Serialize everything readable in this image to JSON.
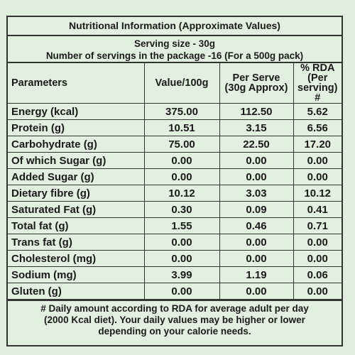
{
  "title": "Nutritional Information (Approximate Values)",
  "serving": {
    "line1": "Serving size - 30g",
    "line2": "Number of servings in the package -16 (For a 500g pack)"
  },
  "headers": {
    "parameters": "Parameters",
    "value": "Value/100g",
    "per_serve": "Per Serve (30g Approx)",
    "rda": "% RDA (Per serving) #"
  },
  "rows": [
    {
      "name": "Energy (kcal)",
      "value": "375.00",
      "per_serve": "112.50",
      "rda": "5.62"
    },
    {
      "name": "Protein (g)",
      "value": "10.51",
      "per_serve": "3.15",
      "rda": "6.56"
    },
    {
      "name": "Carbohydrate (g)",
      "value": "75.00",
      "per_serve": "22.50",
      "rda": "17.20"
    },
    {
      "name": "Of which Sugar (g)",
      "value": "0.00",
      "per_serve": "0.00",
      "rda": "0.00"
    },
    {
      "name": "Added Sugar (g)",
      "value": "0.00",
      "per_serve": "0.00",
      "rda": "0.00"
    },
    {
      "name": "Dietary fibre (g)",
      "value": "10.12",
      "per_serve": "3.03",
      "rda": "10.12"
    },
    {
      "name": "Saturated Fat (g)",
      "value": "0.30",
      "per_serve": "0.09",
      "rda": "0.41"
    },
    {
      "name": "Total fat (g)",
      "value": "1.55",
      "per_serve": "0.46",
      "rda": "0.71"
    },
    {
      "name": "Trans fat (g)",
      "value": "0.00",
      "per_serve": "0.00",
      "rda": "0.00"
    },
    {
      "name": "Cholesterol (mg)",
      "value": "0.00",
      "per_serve": "0.00",
      "rda": "0.00"
    },
    {
      "name": "Sodium (mg)",
      "value": "3.99",
      "per_serve": "1.19",
      "rda": "0.06"
    },
    {
      "name": "Gluten (g)",
      "value": "0.00",
      "per_serve": "0.00",
      "rda": "0.00"
    }
  ],
  "footer": {
    "line1": "# Daily amount according to RDA for average adult per day",
    "line2": "(2000 Kcal diet). Your daily values may be higher or lower",
    "line3": "depending on your calorie needs."
  }
}
